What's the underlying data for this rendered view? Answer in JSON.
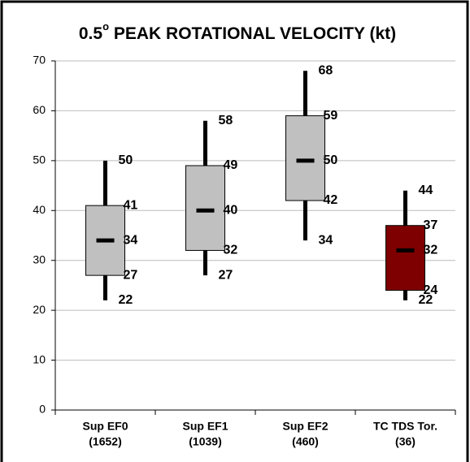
{
  "chart_data": {
    "type": "box",
    "title": "0.5",
    "title_sup": "o",
    "title_rest": " PEAK ROTATIONAL VELOCITY (kt)",
    "categories": [
      "Sup EF0",
      "Sup EF1",
      "Sup EF2",
      "TC TDS Tor."
    ],
    "sample_sizes": [
      "(1652)",
      "(1039)",
      "(460)",
      "(36)"
    ],
    "boxes": [
      {
        "low": 22,
        "q1": 27,
        "median": 34,
        "q3": 41,
        "high": 50,
        "color": "#c0c0c0"
      },
      {
        "low": 27,
        "q1": 32,
        "median": 40,
        "q3": 49,
        "high": 58,
        "color": "#c0c0c0"
      },
      {
        "low": 34,
        "q1": 42,
        "median": 50,
        "q3": 59,
        "high": 68,
        "color": "#c0c0c0"
      },
      {
        "low": 22,
        "q1": 24,
        "median": 32,
        "q3": 37,
        "high": 44,
        "color": "#7f0000"
      }
    ],
    "ylim": [
      0,
      70
    ],
    "yticks": [
      0,
      10,
      20,
      30,
      40,
      50,
      60,
      70
    ],
    "grid": true
  }
}
